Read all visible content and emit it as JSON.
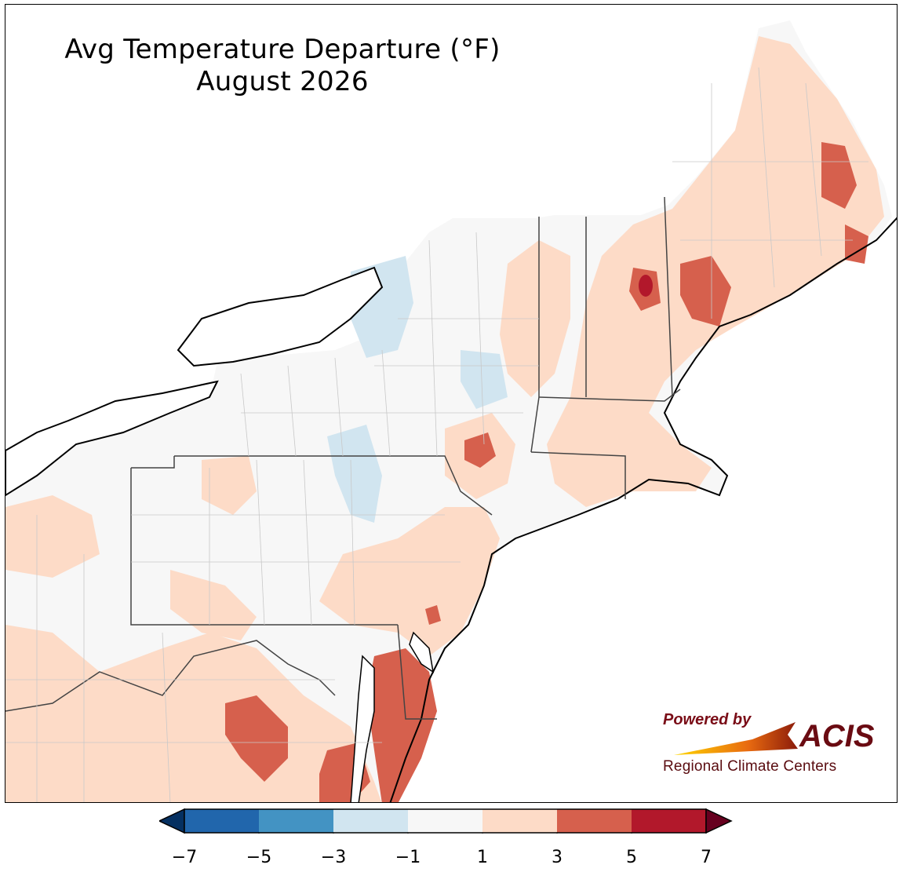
{
  "title": {
    "line1": "Avg Temperature Departure (°F)",
    "line2": "August 2026"
  },
  "map": {
    "region": "Northeast United States",
    "variable": "temperature departure"
  },
  "colorbar": {
    "ticks": [
      "−7",
      "−5",
      "−3",
      "−1",
      "1",
      "3",
      "5",
      "7"
    ],
    "bins": [
      {
        "range": [
          -7,
          -5
        ],
        "color": "#2166ac"
      },
      {
        "range": [
          -5,
          -3
        ],
        "color": "#4393c3"
      },
      {
        "range": [
          -3,
          -1
        ],
        "color": "#d1e5f0"
      },
      {
        "range": [
          -1,
          1
        ],
        "color": "#f7f7f7"
      },
      {
        "range": [
          1,
          3
        ],
        "color": "#fddbc7"
      },
      {
        "range": [
          3,
          5
        ],
        "color": "#d6604d"
      },
      {
        "range": [
          5,
          7
        ],
        "color": "#b2182b"
      }
    ],
    "under_color": "#053061",
    "over_color": "#67001f",
    "extend": "both"
  },
  "logo": {
    "powered_by": "Powered by",
    "brand": "ACIS",
    "subtitle": "Regional Climate Centers"
  }
}
